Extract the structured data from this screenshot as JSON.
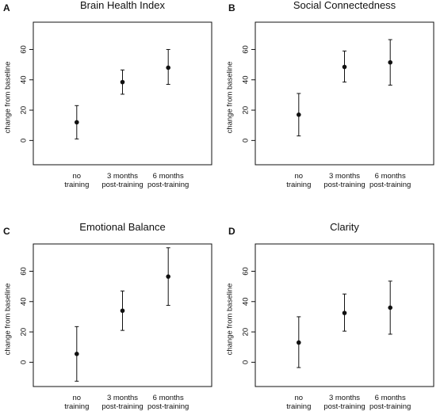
{
  "figure": {
    "background": "#ffffff",
    "ink": "#111111"
  },
  "chart_data": [
    {
      "panel": "A",
      "type": "scatter",
      "title": "Brain Health Index",
      "ylabel": "change from baseline",
      "xlabel": "",
      "ylim": [
        -16,
        78
      ],
      "yticks": [
        0,
        20,
        40,
        60
      ],
      "grid": false,
      "categories": [
        [
          "no",
          "training"
        ],
        [
          "3 months",
          "post-training"
        ],
        [
          "6 months",
          "post-training"
        ]
      ],
      "series": [
        {
          "values": [
            12,
            38.5,
            48
          ],
          "error_low": [
            1,
            30.5,
            37
          ],
          "error_high": [
            23,
            46.5,
            60
          ]
        }
      ]
    },
    {
      "panel": "B",
      "type": "scatter",
      "title": "Social Connectedness",
      "ylabel": "change from baseline",
      "xlabel": "",
      "ylim": [
        -16,
        78
      ],
      "yticks": [
        0,
        20,
        40,
        60
      ],
      "grid": false,
      "categories": [
        [
          "no",
          "training"
        ],
        [
          "3 months",
          "post-training"
        ],
        [
          "6 months",
          "post-training"
        ]
      ],
      "series": [
        {
          "values": [
            17,
            48.5,
            51.5
          ],
          "error_low": [
            3,
            38.5,
            36.5
          ],
          "error_high": [
            31,
            59,
            66.5
          ]
        }
      ]
    },
    {
      "panel": "C",
      "type": "scatter",
      "title": "Emotional Balance",
      "ylabel": "change from baseline",
      "xlabel": "",
      "ylim": [
        -16,
        78
      ],
      "yticks": [
        0,
        20,
        40,
        60
      ],
      "grid": false,
      "categories": [
        [
          "no",
          "training"
        ],
        [
          "3 months",
          "post-training"
        ],
        [
          "6 months",
          "post-training"
        ]
      ],
      "series": [
        {
          "values": [
            5.5,
            34,
            56.5
          ],
          "error_low": [
            -12.5,
            21,
            37.5
          ],
          "error_high": [
            23.5,
            47,
            75.5
          ]
        }
      ]
    },
    {
      "panel": "D",
      "type": "scatter",
      "title": "Clarity",
      "ylabel": "change from baseline",
      "xlabel": "",
      "ylim": [
        -16,
        78
      ],
      "yticks": [
        0,
        20,
        40,
        60
      ],
      "grid": false,
      "categories": [
        [
          "no",
          "training"
        ],
        [
          "3 months",
          "post-training"
        ],
        [
          "6 months",
          "post-training"
        ]
      ],
      "series": [
        {
          "values": [
            13,
            32.5,
            36
          ],
          "error_low": [
            -3.5,
            20.5,
            18.5
          ],
          "error_high": [
            30,
            45,
            53.5
          ]
        }
      ]
    }
  ]
}
